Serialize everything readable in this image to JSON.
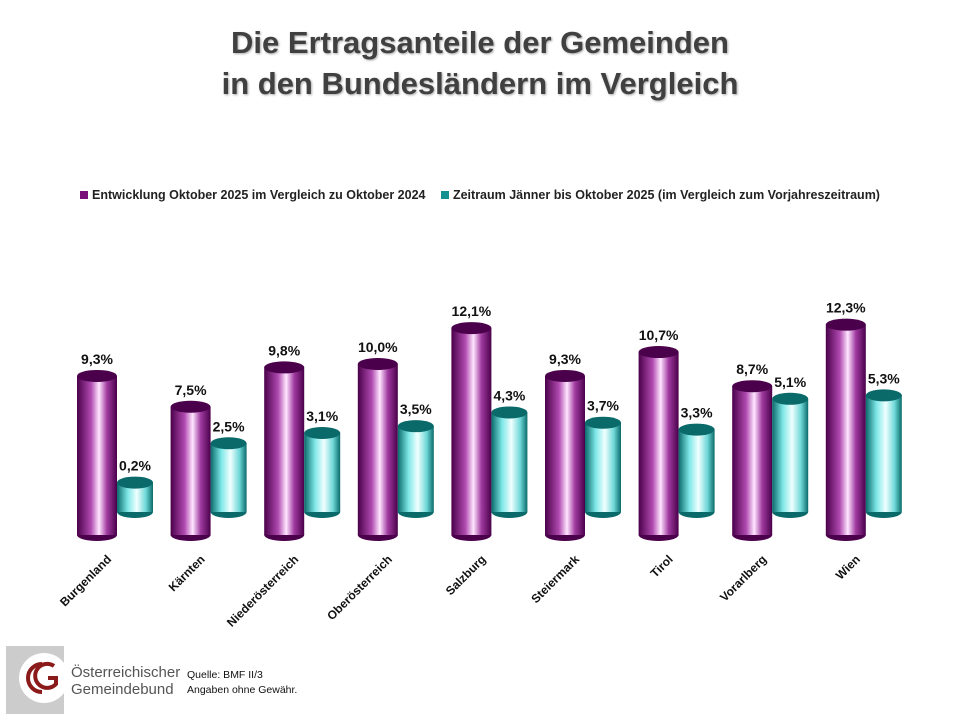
{
  "title_line1": "Die Ertragsanteile der Gemeinden",
  "title_line2": "in den Bundesländern im Vergleich",
  "chart_data": {
    "type": "bar",
    "style": "3d-cylinder",
    "categories": [
      "Burgenland",
      "Kärnten",
      "Niederösterreich",
      "Oberösterreich",
      "Salzburg",
      "Steiermark",
      "Tirol",
      "Vorarlberg",
      "Wien"
    ],
    "series": [
      {
        "name": "Entwicklung Oktober 2025 im Vergleich zu Oktober 2024",
        "color": "#7a0f7a",
        "values": [
          9.3,
          7.5,
          9.8,
          10.0,
          12.1,
          9.3,
          10.7,
          8.7,
          12.3
        ],
        "labels": [
          "9,3%",
          "7,5%",
          "9,8%",
          "10,0%",
          "12,1%",
          "9,3%",
          "10,7%",
          "8,7%",
          "12,3%"
        ]
      },
      {
        "name": "Zeitraum Jänner bis Oktober 2025 (im Vergleich zum Vorjahreszeitraum)",
        "color": "#138f8f",
        "values": [
          0.2,
          2.5,
          3.1,
          3.5,
          4.3,
          3.7,
          3.3,
          5.1,
          5.3
        ],
        "labels": [
          "0,2%",
          "2,5%",
          "3,1%",
          "3,5%",
          "4,3%",
          "3,7%",
          "3,3%",
          "5,1%",
          "5,3%"
        ]
      }
    ],
    "legend": "top",
    "grid": false
  },
  "logo": {
    "line1": "Österreichischer",
    "line2": "Gemeindebund"
  },
  "source": {
    "line1": "Quelle: BMF II/3",
    "line2": "Angaben ohne Gewähr."
  }
}
